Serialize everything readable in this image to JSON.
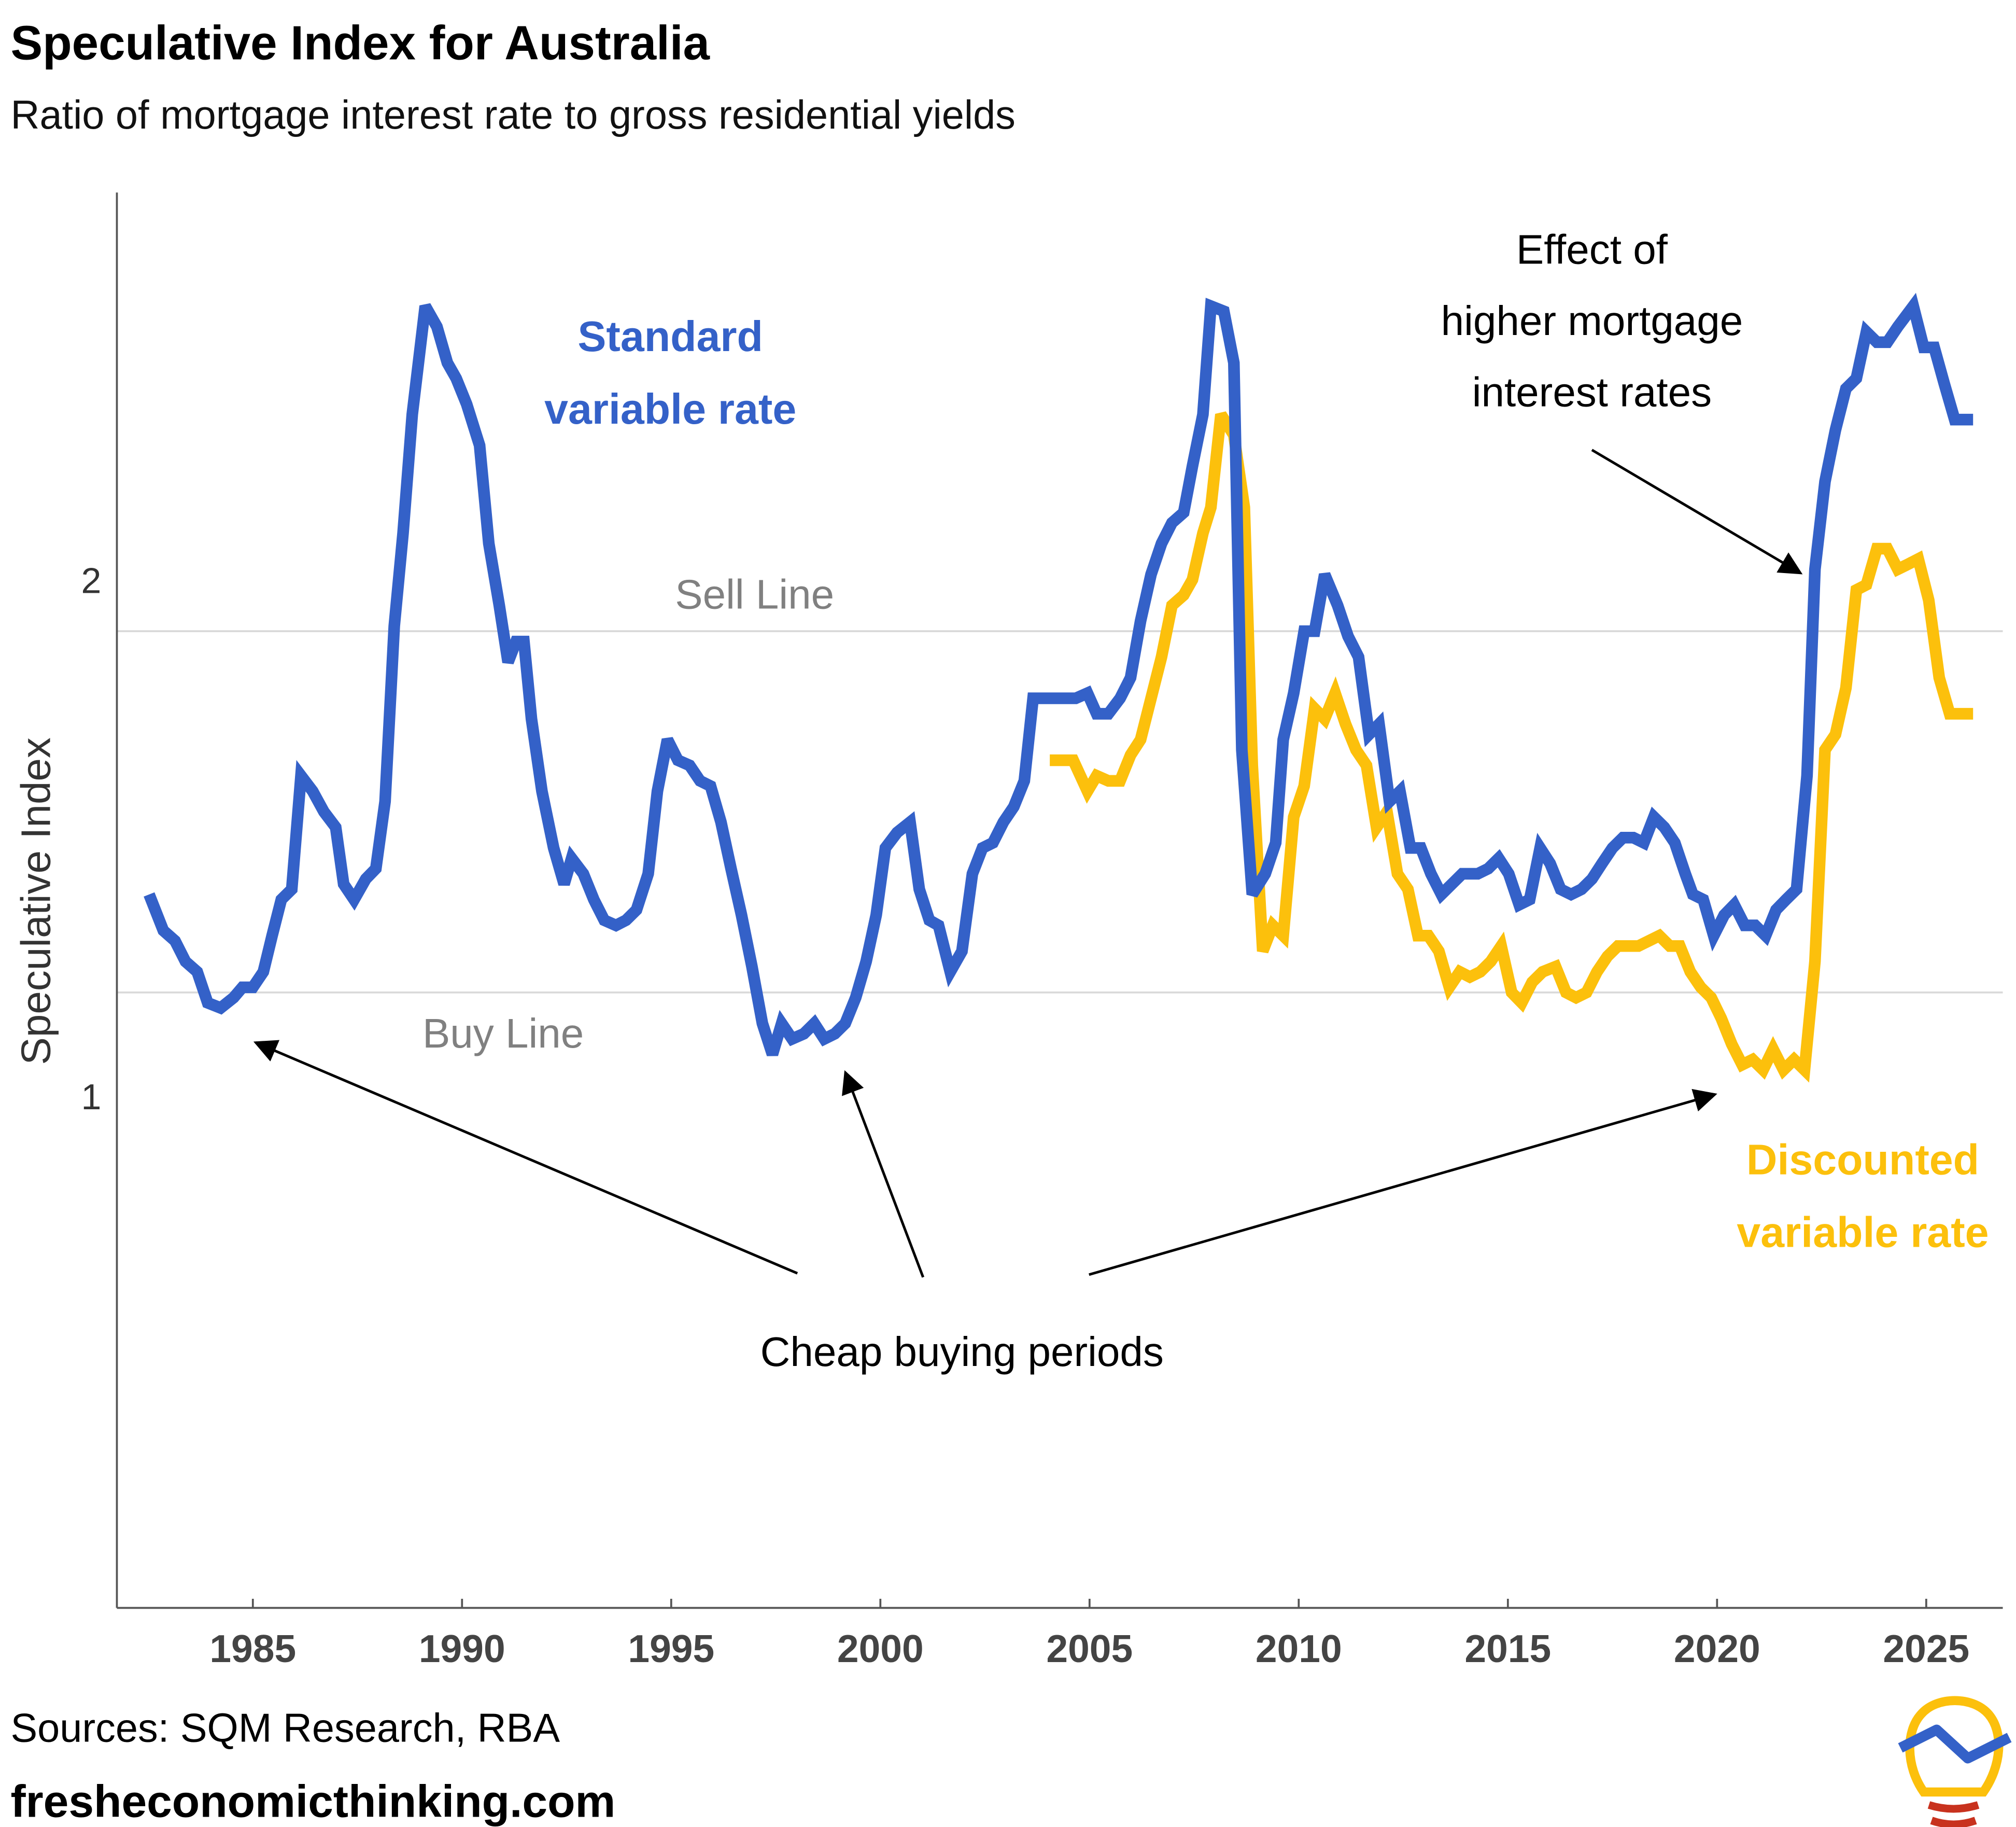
{
  "chart_data": {
    "type": "line",
    "title": "Speculative Index for Australia",
    "subtitle": "Ratio of mortgage interest rate to gross residential yields",
    "ylabel": "Speculative Index",
    "source": "Sources: SQM Research, RBA",
    "website": "fresheconomicthinking.com",
    "xlim": [
      1981.75,
      2026.83
    ],
    "ylim": [
      0,
      2.75
    ],
    "xticks": [
      1985,
      1990,
      1995,
      2000,
      2005,
      2010,
      2015,
      2020,
      2025
    ],
    "yticks": [
      1,
      2
    ],
    "grid": false,
    "reference_lines": [
      {
        "label": "Sell Line",
        "value": 1.9
      },
      {
        "label": "Buy Line",
        "value": 1.2
      }
    ],
    "annotations": [
      {
        "lines": [
          "Standard",
          "variable rate"
        ]
      },
      {
        "lines": [
          "Effect of",
          "higher mortgage",
          "interest rates"
        ]
      },
      {
        "lines": [
          "Cheap buying periods"
        ]
      },
      {
        "lines": [
          "Discounted",
          "variable rate"
        ]
      }
    ],
    "series": [
      {
        "name": "Standard variable rate",
        "color": "#3461c8",
        "x": [
          1982.52,
          1982.86,
          1983.14,
          1983.39,
          1983.67,
          1983.92,
          1984.23,
          1984.54,
          1984.75,
          1985.0,
          1985.25,
          1985.46,
          1985.68,
          1985.93,
          1986.15,
          1986.43,
          1986.7,
          1986.98,
          1987.17,
          1987.42,
          1987.7,
          1987.94,
          1988.16,
          1988.38,
          1988.59,
          1988.81,
          1989.12,
          1989.4,
          1989.65,
          1989.86,
          1990.11,
          1990.42,
          1990.64,
          1990.89,
          1991.1,
          1991.29,
          1991.48,
          1991.66,
          1991.91,
          1992.19,
          1992.44,
          1992.62,
          1992.9,
          1993.15,
          1993.4,
          1993.68,
          1993.92,
          1994.17,
          1994.45,
          1994.67,
          1994.91,
          1995.16,
          1995.44,
          1995.69,
          1995.94,
          1996.19,
          1996.43,
          1996.68,
          1996.93,
          1997.18,
          1997.42,
          1997.64,
          1997.89,
          1998.17,
          1998.42,
          1998.66,
          1998.91,
          1999.16,
          1999.41,
          1999.66,
          1999.9,
          2000.12,
          2000.4,
          2000.71,
          2000.93,
          2001.17,
          2001.39,
          2001.67,
          2001.95,
          2002.2,
          2002.44,
          2002.69,
          2002.94,
          2003.19,
          2003.44,
          2003.65,
          2004.05,
          2004.67,
          2004.95,
          2005.17,
          2005.45,
          2005.73,
          2005.98,
          2006.22,
          2006.47,
          2006.72,
          2006.97,
          2007.25,
          2007.46,
          2007.71,
          2007.9,
          2008.21,
          2008.45,
          2008.64,
          2008.89,
          2009.2,
          2009.45,
          2009.63,
          2009.88,
          2010.13,
          2010.38,
          2010.62,
          2010.93,
          2011.18,
          2011.43,
          2011.68,
          2011.92,
          2012.17,
          2012.42,
          2012.67,
          2012.92,
          2013.16,
          2013.41,
          2013.66,
          2013.91,
          2014.28,
          2014.53,
          2014.78,
          2015.02,
          2015.27,
          2015.52,
          2015.77,
          2016.01,
          2016.26,
          2016.51,
          2016.76,
          2017.01,
          2017.25,
          2017.5,
          2017.75,
          2018.0,
          2018.25,
          2018.49,
          2018.74,
          2018.99,
          2019.24,
          2019.42,
          2019.67,
          2019.92,
          2020.17,
          2020.41,
          2020.66,
          2020.91,
          2021.16,
          2021.41,
          2021.65,
          2021.9,
          2022.15,
          2022.34,
          2022.58,
          2022.83,
          2023.08,
          2023.33,
          2023.57,
          2023.82,
          2024.07,
          2024.32,
          2024.69,
          2024.94,
          2025.19,
          2025.43,
          2025.68,
          2026.12
        ],
        "values": [
          1.39,
          1.32,
          1.3,
          1.26,
          1.24,
          1.18,
          1.17,
          1.19,
          1.21,
          1.21,
          1.24,
          1.31,
          1.38,
          1.4,
          1.62,
          1.59,
          1.55,
          1.52,
          1.41,
          1.38,
          1.42,
          1.44,
          1.57,
          1.91,
          2.09,
          2.32,
          2.53,
          2.49,
          2.42,
          2.39,
          2.34,
          2.26,
          2.07,
          1.95,
          1.84,
          1.88,
          1.88,
          1.73,
          1.59,
          1.48,
          1.41,
          1.46,
          1.43,
          1.38,
          1.34,
          1.33,
          1.34,
          1.36,
          1.43,
          1.59,
          1.69,
          1.65,
          1.64,
          1.61,
          1.6,
          1.53,
          1.44,
          1.35,
          1.25,
          1.14,
          1.08,
          1.14,
          1.11,
          1.12,
          1.14,
          1.11,
          1.12,
          1.14,
          1.19,
          1.26,
          1.35,
          1.48,
          1.51,
          1.53,
          1.4,
          1.34,
          1.33,
          1.24,
          1.28,
          1.43,
          1.48,
          1.49,
          1.53,
          1.56,
          1.61,
          1.77,
          1.77,
          1.77,
          1.78,
          1.74,
          1.74,
          1.77,
          1.81,
          1.92,
          2.01,
          2.07,
          2.11,
          2.13,
          2.22,
          2.32,
          2.53,
          2.52,
          2.42,
          1.67,
          1.39,
          1.43,
          1.49,
          1.69,
          1.78,
          1.9,
          1.9,
          2.01,
          1.95,
          1.89,
          1.85,
          1.7,
          1.72,
          1.57,
          1.59,
          1.48,
          1.48,
          1.43,
          1.39,
          1.41,
          1.43,
          1.43,
          1.44,
          1.46,
          1.43,
          1.37,
          1.38,
          1.48,
          1.45,
          1.4,
          1.39,
          1.4,
          1.42,
          1.45,
          1.48,
          1.5,
          1.5,
          1.49,
          1.54,
          1.52,
          1.49,
          1.43,
          1.39,
          1.38,
          1.31,
          1.35,
          1.37,
          1.33,
          1.33,
          1.31,
          1.36,
          1.38,
          1.4,
          1.62,
          2.02,
          2.19,
          2.29,
          2.37,
          2.39,
          2.48,
          2.46,
          2.46,
          2.49,
          2.53,
          2.45,
          2.45,
          2.38,
          2.31,
          2.31
        ]
      },
      {
        "name": "Discounted variable rate",
        "color": "#fcc00c",
        "x": [
          2004.05,
          2004.61,
          2004.95,
          2005.17,
          2005.45,
          2005.73,
          2005.98,
          2006.22,
          2006.47,
          2006.72,
          2006.97,
          2007.25,
          2007.46,
          2007.71,
          2007.9,
          2008.14,
          2008.45,
          2008.7,
          2008.89,
          2009.14,
          2009.38,
          2009.63,
          2009.88,
          2010.13,
          2010.38,
          2010.62,
          2010.87,
          2011.12,
          2011.37,
          2011.62,
          2011.86,
          2012.11,
          2012.36,
          2012.61,
          2012.85,
          2013.1,
          2013.35,
          2013.6,
          2013.85,
          2014.09,
          2014.34,
          2014.59,
          2014.84,
          2015.09,
          2015.33,
          2015.58,
          2015.83,
          2016.14,
          2016.39,
          2016.63,
          2016.88,
          2017.13,
          2017.38,
          2017.63,
          2017.87,
          2018.12,
          2018.37,
          2018.62,
          2018.87,
          2019.11,
          2019.36,
          2019.61,
          2019.86,
          2020.1,
          2020.35,
          2020.6,
          2020.85,
          2021.1,
          2021.34,
          2021.59,
          2021.84,
          2022.09,
          2022.34,
          2022.58,
          2022.83,
          2023.08,
          2023.33,
          2023.57,
          2023.82,
          2024.07,
          2024.32,
          2024.57,
          2024.81,
          2025.06,
          2025.31,
          2025.56,
          2026.12
        ],
        "values": [
          1.65,
          1.65,
          1.59,
          1.62,
          1.61,
          1.61,
          1.66,
          1.69,
          1.77,
          1.85,
          1.95,
          1.97,
          2.0,
          2.09,
          2.14,
          2.32,
          2.28,
          2.14,
          1.64,
          1.28,
          1.33,
          1.31,
          1.54,
          1.6,
          1.75,
          1.73,
          1.78,
          1.72,
          1.67,
          1.64,
          1.52,
          1.55,
          1.43,
          1.4,
          1.31,
          1.31,
          1.28,
          1.21,
          1.24,
          1.23,
          1.24,
          1.26,
          1.29,
          1.2,
          1.18,
          1.22,
          1.24,
          1.25,
          1.2,
          1.19,
          1.2,
          1.24,
          1.27,
          1.29,
          1.29,
          1.29,
          1.3,
          1.31,
          1.29,
          1.29,
          1.24,
          1.21,
          1.19,
          1.15,
          1.1,
          1.06,
          1.07,
          1.05,
          1.09,
          1.05,
          1.07,
          1.05,
          1.26,
          1.67,
          1.7,
          1.79,
          1.98,
          1.99,
          2.06,
          2.06,
          2.02,
          2.03,
          2.04,
          1.96,
          1.81,
          1.74,
          1.74
        ]
      }
    ]
  }
}
